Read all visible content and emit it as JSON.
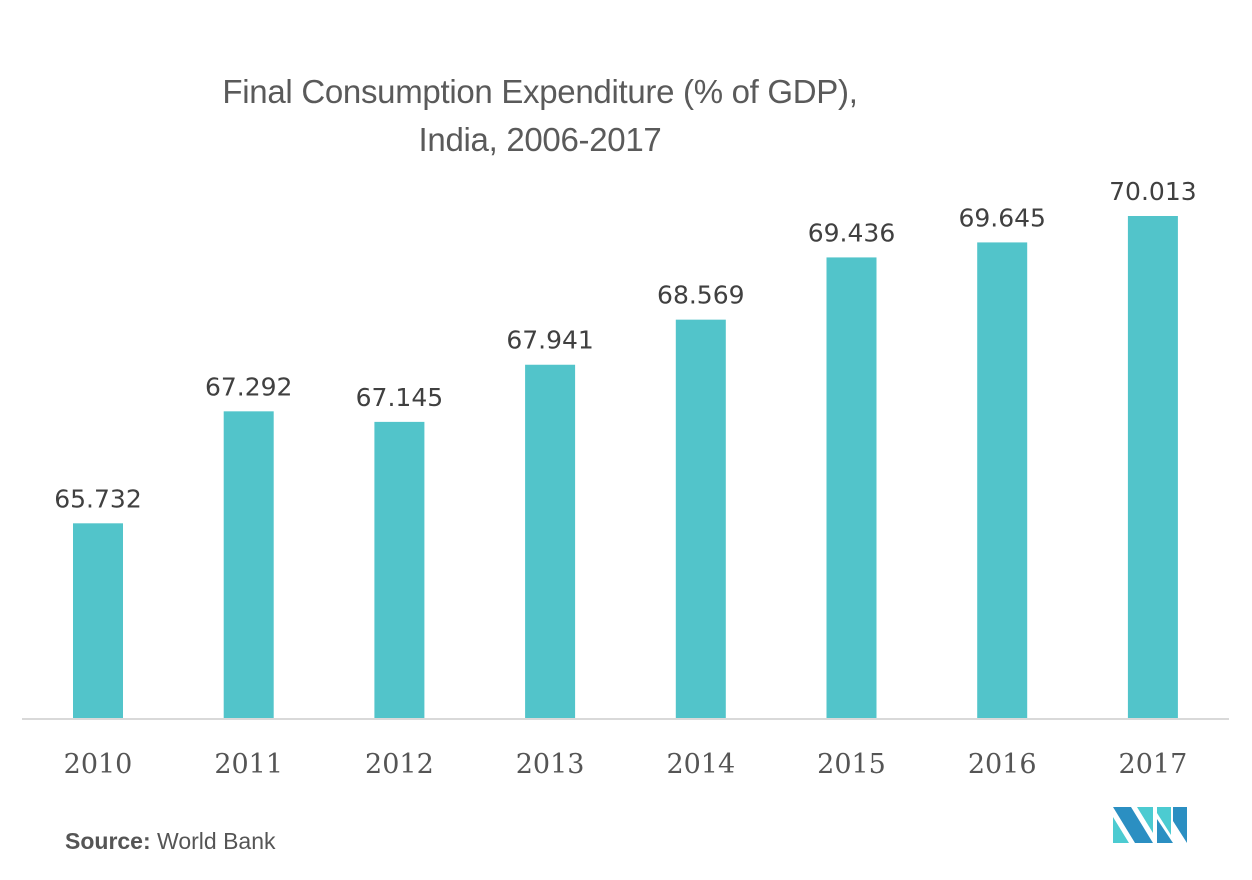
{
  "chart_data": {
    "type": "bar",
    "title": "Final Consumption Expenditure (% of GDP),",
    "subtitle": "India, 2006-2017",
    "categories": [
      "2010",
      "2011",
      "2012",
      "2013",
      "2014",
      "2015",
      "2016",
      "2017"
    ],
    "values": [
      65.732,
      67.292,
      67.145,
      67.941,
      68.569,
      69.436,
      69.645,
      70.013
    ],
    "value_labels": [
      "65.732",
      "67.292",
      "67.145",
      "67.941",
      "68.569",
      "69.436",
      "69.645",
      "70.013"
    ],
    "xlabel": "",
    "ylabel": "",
    "ylim": [
      63.02,
      70.013
    ],
    "grid": false,
    "legend": "none",
    "bar_color": "#52c4ca",
    "axis_color": "#d9d9d9"
  },
  "source": {
    "label": "Source:",
    "value": "World Bank"
  },
  "logo": {
    "name": "mordor-intelligence-logo",
    "colors": [
      "#2b8fc2",
      "#4ccbd1"
    ]
  }
}
